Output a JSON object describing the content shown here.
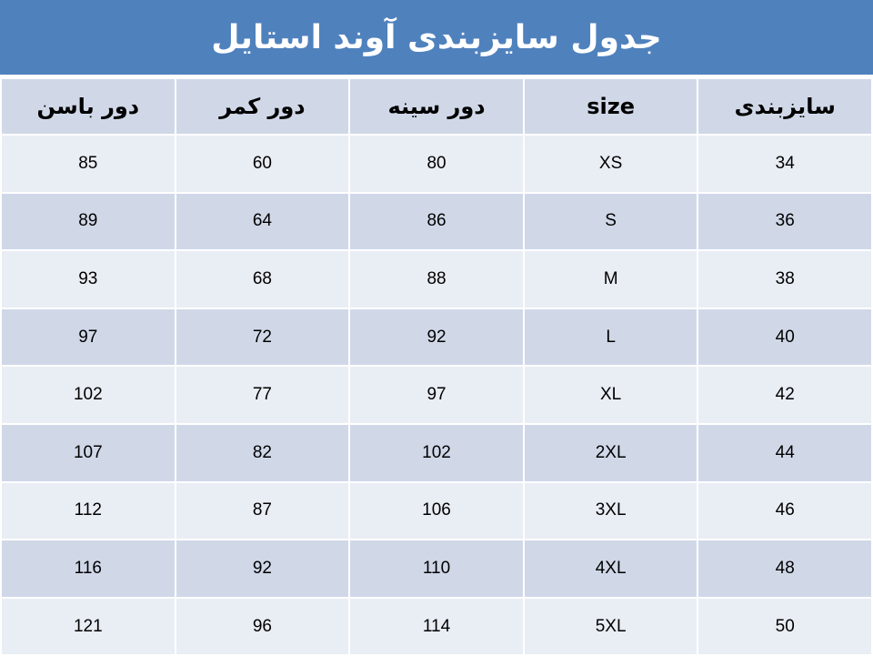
{
  "title": "جدول سایزبندی آوند استایل",
  "colors": {
    "title_bar": "#4F81BD",
    "header_row": "#D0D8E8",
    "row_light": "#E9EDF4",
    "row_dark": "#D0D8E8"
  },
  "headers": [
    "سایزبندی",
    "size",
    "دور سینه",
    "دور کمر",
    "دور باسن"
  ],
  "rows": [
    [
      "34",
      "XS",
      "80",
      "60",
      "85"
    ],
    [
      "36",
      "S",
      "86",
      "64",
      "89"
    ],
    [
      "38",
      "M",
      "88",
      "68",
      "93"
    ],
    [
      "40",
      "L",
      "92",
      "72",
      "97"
    ],
    [
      "42",
      "XL",
      "97",
      "77",
      "102"
    ],
    [
      "44",
      "2XL",
      "102",
      "82",
      "107"
    ],
    [
      "46",
      "3XL",
      "106",
      "87",
      "112"
    ],
    [
      "48",
      "4XL",
      "110",
      "92",
      "116"
    ],
    [
      "50",
      "5XL",
      "114",
      "96",
      "121"
    ]
  ]
}
